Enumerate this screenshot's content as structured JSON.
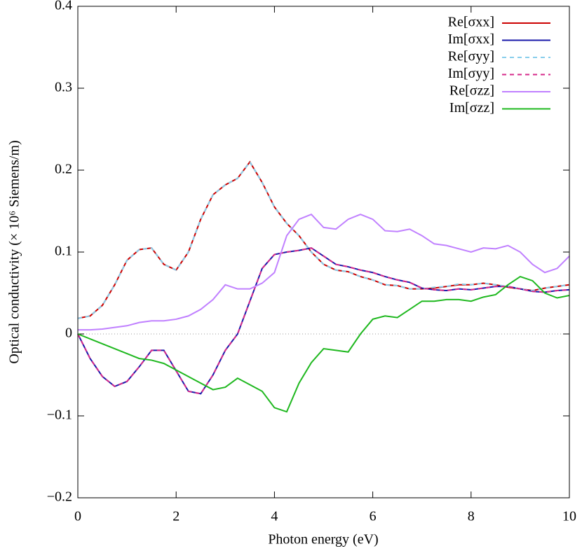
{
  "chart_data": {
    "type": "line",
    "xlabel": "Photon energy (eV)",
    "ylabel": "Optical conductivity (× 10⁶ Siemens/m)",
    "xlim": [
      0,
      10
    ],
    "ylim": [
      -0.2,
      0.4
    ],
    "xticks": [
      0,
      2,
      4,
      6,
      8,
      10
    ],
    "yticks": [
      {
        "value": -0.2,
        "label": "−0.2"
      },
      {
        "value": -0.1,
        "label": "−0.1"
      },
      0,
      0.1,
      0.2,
      0.3,
      0.4
    ],
    "legend": "top right",
    "x": [
      0,
      0.25,
      0.5,
      0.75,
      1,
      1.25,
      1.5,
      1.75,
      2,
      2.25,
      2.5,
      2.75,
      3,
      3.25,
      3.5,
      3.75,
      4,
      4.25,
      4.5,
      4.75,
      5,
      5.25,
      5.5,
      5.75,
      6,
      6.25,
      6.5,
      6.75,
      7,
      7.25,
      7.5,
      7.75,
      8,
      8.25,
      8.5,
      8.75,
      9,
      9.25,
      9.5,
      9.75,
      10
    ],
    "series": [
      {
        "name": "Re[σxx]",
        "color": "#cc0000",
        "dash": false,
        "values": [
          0.019,
          0.022,
          0.035,
          0.06,
          0.09,
          0.103,
          0.105,
          0.085,
          0.078,
          0.1,
          0.14,
          0.17,
          0.182,
          0.19,
          0.21,
          0.185,
          0.155,
          0.135,
          0.12,
          0.1,
          0.085,
          0.078,
          0.076,
          0.07,
          0.066,
          0.06,
          0.059,
          0.055,
          0.055,
          0.056,
          0.058,
          0.06,
          0.06,
          0.062,
          0.06,
          0.057,
          0.055,
          0.053,
          0.056,
          0.058,
          0.06
        ]
      },
      {
        "name": "Im[σxx]",
        "color": "#1a1aaa",
        "dash": false,
        "values": [
          0,
          -0.03,
          -0.052,
          -0.064,
          -0.058,
          -0.04,
          -0.02,
          -0.02,
          -0.045,
          -0.07,
          -0.073,
          -0.05,
          -0.02,
          0,
          0.04,
          0.08,
          0.097,
          0.1,
          0.102,
          0.105,
          0.095,
          0.085,
          0.082,
          0.078,
          0.075,
          0.07,
          0.066,
          0.063,
          0.056,
          0.054,
          0.053,
          0.055,
          0.054,
          0.056,
          0.058,
          0.058,
          0.055,
          0.052,
          0.051,
          0.053,
          0.054
        ]
      },
      {
        "name": "Re[σyy]",
        "color": "#87ceeb",
        "dash": true,
        "values": [
          0.019,
          0.022,
          0.035,
          0.06,
          0.09,
          0.103,
          0.105,
          0.085,
          0.078,
          0.1,
          0.14,
          0.17,
          0.182,
          0.19,
          0.21,
          0.185,
          0.155,
          0.135,
          0.12,
          0.1,
          0.085,
          0.078,
          0.076,
          0.07,
          0.066,
          0.06,
          0.059,
          0.055,
          0.055,
          0.057,
          0.058,
          0.061,
          0.06,
          0.062,
          0.06,
          0.058,
          0.055,
          0.053,
          0.056,
          0.058,
          0.06
        ]
      },
      {
        "name": "Im[σyy]",
        "color": "#d62a8a",
        "dash": true,
        "values": [
          0,
          -0.03,
          -0.052,
          -0.064,
          -0.058,
          -0.04,
          -0.02,
          -0.02,
          -0.045,
          -0.07,
          -0.073,
          -0.05,
          -0.02,
          0,
          0.04,
          0.08,
          0.097,
          0.1,
          0.102,
          0.105,
          0.095,
          0.085,
          0.082,
          0.078,
          0.075,
          0.07,
          0.066,
          0.063,
          0.056,
          0.054,
          0.053,
          0.055,
          0.054,
          0.056,
          0.058,
          0.058,
          0.055,
          0.052,
          0.051,
          0.053,
          0.054
        ]
      },
      {
        "name": "Re[σzz]",
        "color": "#c080ff",
        "dash": false,
        "values": [
          0.005,
          0.005,
          0.006,
          0.008,
          0.01,
          0.014,
          0.016,
          0.016,
          0.018,
          0.022,
          0.03,
          0.042,
          0.06,
          0.055,
          0.055,
          0.062,
          0.075,
          0.12,
          0.14,
          0.146,
          0.13,
          0.128,
          0.14,
          0.146,
          0.14,
          0.126,
          0.125,
          0.128,
          0.12,
          0.11,
          0.108,
          0.104,
          0.1,
          0.105,
          0.104,
          0.108,
          0.1,
          0.085,
          0.075,
          0.08,
          0.095
        ]
      },
      {
        "name": "Im[σzz]",
        "color": "#1fb81f",
        "dash": false,
        "values": [
          0,
          -0.006,
          -0.012,
          -0.018,
          -0.024,
          -0.03,
          -0.032,
          -0.036,
          -0.044,
          -0.052,
          -0.06,
          -0.068,
          -0.065,
          -0.054,
          -0.062,
          -0.07,
          -0.09,
          -0.095,
          -0.06,
          -0.035,
          -0.018,
          -0.02,
          -0.022,
          0,
          0.018,
          0.022,
          0.02,
          0.03,
          0.04,
          0.04,
          0.042,
          0.042,
          0.04,
          0.045,
          0.048,
          0.06,
          0.07,
          0.065,
          0.05,
          0.044,
          0.047
        ]
      }
    ]
  }
}
